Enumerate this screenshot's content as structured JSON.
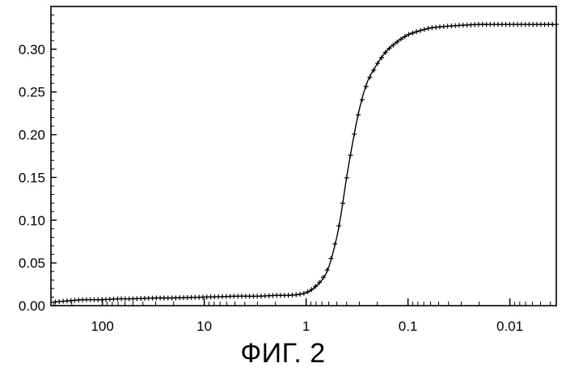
{
  "chart_data": {
    "type": "line",
    "title": "",
    "xlabel": "",
    "ylabel": "",
    "caption": "ФИГ. 2",
    "x_scale": "log",
    "x_reversed": true,
    "xlim": [
      320,
      0.0035
    ],
    "ylim": [
      0,
      0.35
    ],
    "grid": false,
    "legend": "none",
    "x_ticks": [
      {
        "value": 100,
        "label": "100"
      },
      {
        "value": 10,
        "label": "10"
      },
      {
        "value": 1,
        "label": "1"
      },
      {
        "value": 0.1,
        "label": "0.1"
      },
      {
        "value": 0.01,
        "label": "0.01"
      }
    ],
    "y_ticks": [
      {
        "value": 0.0,
        "label": "0.00"
      },
      {
        "value": 0.05,
        "label": "0.05"
      },
      {
        "value": 0.1,
        "label": "0.10"
      },
      {
        "value": 0.15,
        "label": "0.15"
      },
      {
        "value": 0.2,
        "label": "0.20"
      },
      {
        "value": 0.25,
        "label": "0.25"
      },
      {
        "value": 0.3,
        "label": "0.30"
      }
    ],
    "series": [
      {
        "marker": "+",
        "color": "#000000",
        "x": [
          316,
          200,
          150,
          100,
          70,
          50,
          30,
          20,
          10,
          5,
          3,
          2,
          1.5,
          1.2,
          1.0,
          0.85,
          0.7,
          0.6,
          0.5,
          0.45,
          0.4,
          0.35,
          0.3,
          0.25,
          0.2,
          0.17,
          0.15,
          0.12,
          0.1,
          0.08,
          0.06,
          0.05,
          0.04,
          0.03,
          0.02,
          0.015,
          0.01,
          0.007,
          0.005,
          0.0035
        ],
        "y": [
          0.004,
          0.006,
          0.007,
          0.007,
          0.008,
          0.008,
          0.009,
          0.009,
          0.01,
          0.011,
          0.011,
          0.012,
          0.012,
          0.013,
          0.015,
          0.02,
          0.03,
          0.045,
          0.08,
          0.11,
          0.15,
          0.19,
          0.23,
          0.262,
          0.283,
          0.295,
          0.302,
          0.311,
          0.317,
          0.321,
          0.325,
          0.326,
          0.327,
          0.328,
          0.329,
          0.329,
          0.329,
          0.329,
          0.329,
          0.329
        ]
      }
    ]
  }
}
